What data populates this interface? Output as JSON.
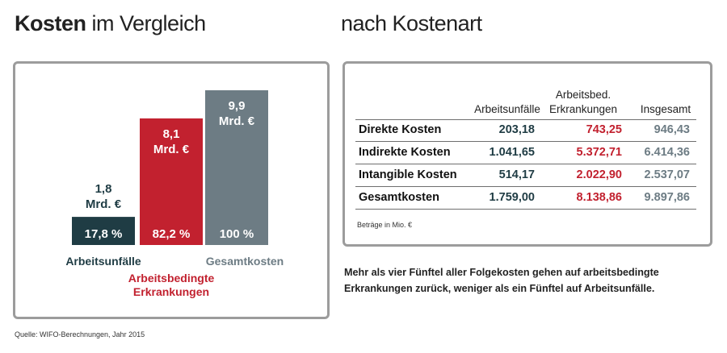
{
  "titles": {
    "left_bold": "Kosten",
    "left_rest": " im Vergleich",
    "right": "nach Kostenart"
  },
  "colors": {
    "arbeitsunfaelle": "#1f3c44",
    "erkrankungen": "#c2212f",
    "gesamt": "#6d7c84"
  },
  "chart_data": {
    "type": "bar",
    "categories": [
      "Arbeitsunfälle",
      "Arbeitsbedingte Erkrankungen",
      "Gesamtkosten"
    ],
    "values": [
      1.8,
      8.1,
      9.9
    ],
    "shares": [
      "17,8 %",
      "82,2 %",
      "100 %"
    ],
    "value_labels": [
      [
        "1,8",
        "Mrd. €"
      ],
      [
        "8,1",
        "Mrd. €"
      ],
      [
        "9,9",
        "Mrd. €"
      ]
    ],
    "category_labels": [
      [
        "Arbeitsunfälle"
      ],
      [
        "Arbeitsbedingte",
        "Erkrankungen"
      ],
      [
        "Gesamtkosten"
      ]
    ],
    "unit": "Mrd. €",
    "ylim": [
      0,
      9.9
    ]
  },
  "table": {
    "headers": [
      "Arbeitsunfälle",
      "Arbeitsbed.",
      "Erkrankungen",
      "Insgesamt"
    ],
    "rows": [
      {
        "label": "Direkte Kosten",
        "v1": "203,18",
        "v2": "743,25",
        "v3": "946,43"
      },
      {
        "label": "Indirekte Kosten",
        "v1": "1.041,65",
        "v2": "5.372,71",
        "v3": "6.414,36"
      },
      {
        "label": "Intangible Kosten",
        "v1": "514,17",
        "v2": "2.022,90",
        "v3": "2.537,07"
      },
      {
        "label": "Gesamtkosten",
        "v1": "1.759,00",
        "v2": "8.138,86",
        "v3": "9.897,86"
      }
    ],
    "unit_note": "Beträge in Mio. €"
  },
  "summary": "Mehr als vier Fünftel aller Folgekosten gehen auf arbeitsbedingte Erkrankungen zurück, weniger als ein Fünftel auf Arbeitsunfälle.",
  "source": "Quelle: WIFO-Berechnungen, Jahr 2015"
}
